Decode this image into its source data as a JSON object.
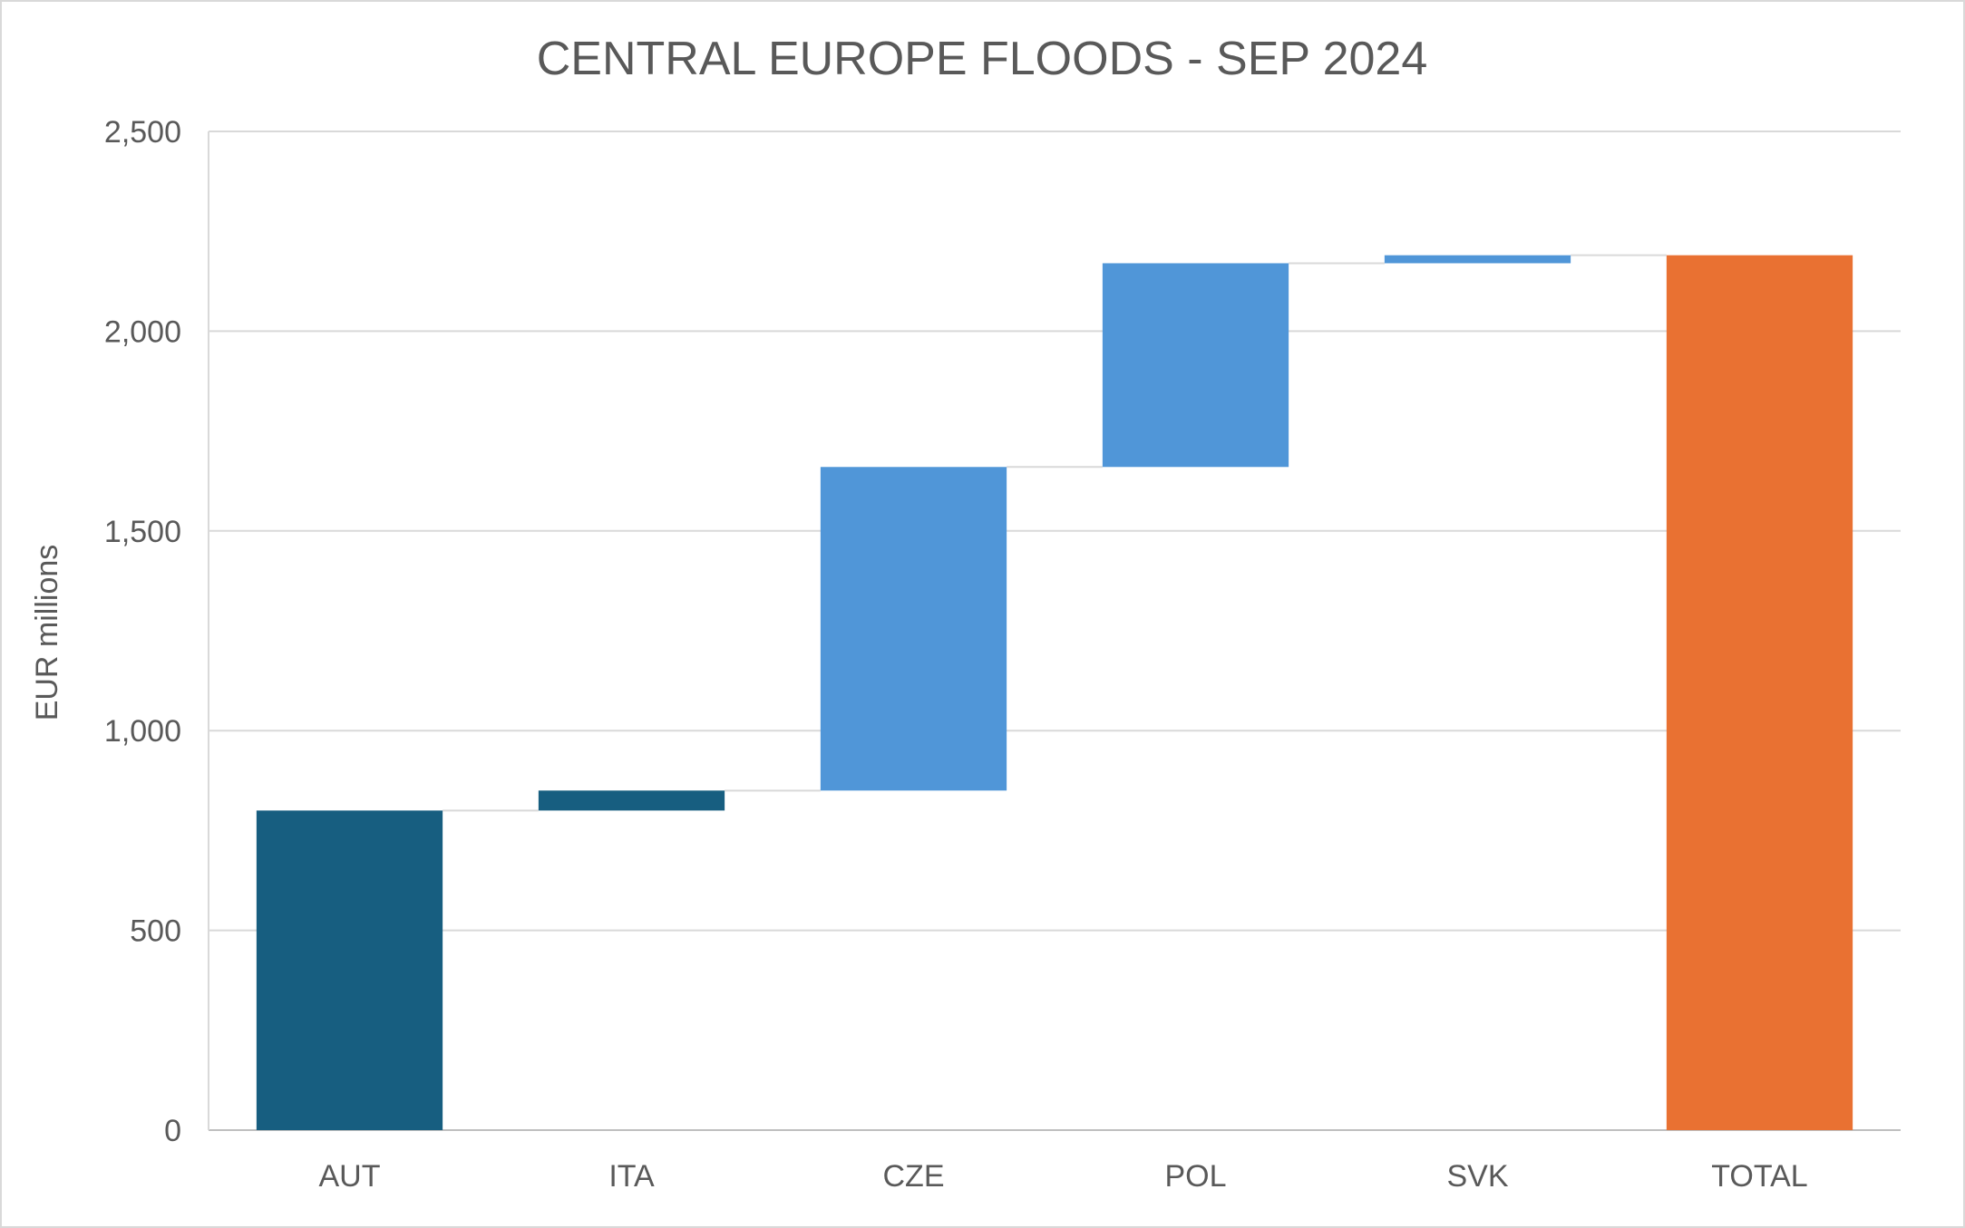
{
  "chart_data": {
    "type": "bar",
    "subtype": "waterfall",
    "title": "CENTRAL EUROPE FLOODS - SEP 2024",
    "ylabel": "EUR millions",
    "xlabel": "",
    "ylim": [
      0,
      2500
    ],
    "yticks": [
      0,
      500,
      1000,
      1500,
      2000,
      2500
    ],
    "ytick_labels": [
      "0",
      "500",
      "1,000",
      "1,500",
      "2,000",
      "2,500"
    ],
    "grid": true,
    "legend": "none",
    "categories": [
      "AUT",
      "ITA",
      "CZE",
      "POL",
      "SVK",
      "TOTAL"
    ],
    "values": [
      800,
      50,
      810,
      510,
      20,
      2190
    ],
    "is_total": [
      false,
      false,
      false,
      false,
      false,
      true
    ],
    "colors": [
      "#175e80",
      "#175e80",
      "#5096d8",
      "#5096d8",
      "#5096d8",
      "#e97132"
    ]
  }
}
